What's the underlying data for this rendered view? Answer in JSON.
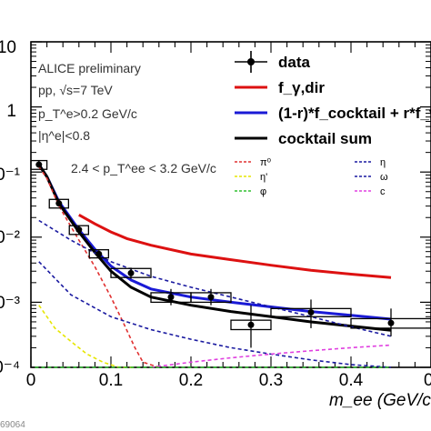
{
  "chart_data": {
    "type": "line",
    "xlabel": "m_ee (GeV/c",
    "ylabel": "",
    "xlim": [
      0,
      0.5
    ],
    "ylim": [
      0.0001,
      10
    ],
    "y_scale": "log",
    "x_ticks": [
      "0",
      "0.1",
      "0.2",
      "0.3",
      "0.4",
      "0"
    ],
    "y_ticks": [
      "10",
      "1",
      "0⁻¹",
      "0⁻²",
      "0⁻³",
      "0⁻⁴"
    ],
    "annotations": [
      "ALICE preliminary",
      "pp, √s=7 TeV",
      "p_T^e>0.2 GeV/c",
      "|η^e|<0.8",
      "2.4 < p_T^ee < 3.2 GeV/c"
    ],
    "watermark": "69064",
    "legend": [
      {
        "label": "data",
        "color": "#000000",
        "style": "marker"
      },
      {
        "label": "f_γ,dir",
        "color": "#dd1111",
        "style": "line"
      },
      {
        "label": "(1-r)*f_cocktail + r*f_γ,dir",
        "color": "#1a1ad6",
        "style": "line"
      },
      {
        "label": "cocktail sum",
        "color": "#000000",
        "style": "line"
      }
    ],
    "legend_small": [
      {
        "label": "π⁰",
        "color": "#e03030"
      },
      {
        "label": "η",
        "color": "#1a1aa0"
      },
      {
        "label": "η'",
        "color": "#e6e600"
      },
      {
        "label": "ω",
        "color": "#1a1aa0"
      },
      {
        "label": "φ",
        "color": "#30c030"
      },
      {
        "label": "c",
        "color": "#e040e0"
      }
    ],
    "series": [
      {
        "name": "data",
        "type": "points",
        "color": "#000000",
        "x": [
          0.01,
          0.035,
          0.06,
          0.085,
          0.125,
          0.175,
          0.225,
          0.275,
          0.35,
          0.45
        ],
        "y": [
          0.13,
          0.033,
          0.013,
          0.0055,
          0.0028,
          0.0012,
          0.0012,
          0.00045,
          0.0007,
          0.00048
        ],
        "y_err_low": [
          0.12,
          0.03,
          0.011,
          0.0048,
          0.0023,
          0.0009,
          0.0009,
          0.0002,
          0.0004,
          0.0003
        ],
        "y_err_high": [
          0.15,
          0.037,
          0.015,
          0.0063,
          0.0034,
          0.0016,
          0.0016,
          0.0009,
          0.0011,
          0.0008
        ],
        "sys_halfwidth": [
          0.01,
          0.012,
          0.012,
          0.012,
          0.025,
          0.025,
          0.025,
          0.025,
          0.05,
          0.05
        ],
        "sys_low": [
          0.11,
          0.028,
          0.011,
          0.0048,
          0.0024,
          0.001,
          0.001,
          0.00038,
          0.0006,
          0.0004
        ],
        "sys_high": [
          0.15,
          0.038,
          0.015,
          0.0064,
          0.0033,
          0.0014,
          0.0014,
          0.00053,
          0.0008,
          0.00056
        ]
      },
      {
        "name": "f_γ,dir",
        "color": "#dd1111",
        "dash": "solid",
        "x": [
          0.06,
          0.08,
          0.1,
          0.12,
          0.15,
          0.2,
          0.25,
          0.3,
          0.35,
          0.4,
          0.45
        ],
        "y": [
          0.022,
          0.016,
          0.012,
          0.0095,
          0.0075,
          0.0055,
          0.0045,
          0.0037,
          0.0031,
          0.0027,
          0.0024
        ]
      },
      {
        "name": "(1-r)*f_cocktail + r*f_γ,dir",
        "color": "#1a1ad6",
        "dash": "solid",
        "x": [
          0.01,
          0.02,
          0.035,
          0.06,
          0.08,
          0.1,
          0.125,
          0.15,
          0.2,
          0.25,
          0.3,
          0.35,
          0.4,
          0.45
        ],
        "y": [
          0.13,
          0.085,
          0.035,
          0.013,
          0.0065,
          0.0036,
          0.0022,
          0.0016,
          0.0012,
          0.001,
          0.00085,
          0.00072,
          0.00063,
          0.00055
        ]
      },
      {
        "name": "cocktail sum",
        "color": "#000000",
        "dash": "solid",
        "x": [
          0.01,
          0.02,
          0.035,
          0.06,
          0.08,
          0.1,
          0.125,
          0.15,
          0.2,
          0.25,
          0.3,
          0.35,
          0.4,
          0.45
        ],
        "y": [
          0.13,
          0.085,
          0.033,
          0.012,
          0.0058,
          0.003,
          0.0017,
          0.0012,
          0.0009,
          0.00072,
          0.0006,
          0.0005,
          0.00043,
          0.00037
        ]
      },
      {
        "name": "π⁰",
        "color": "#e03030",
        "dash": "4,3",
        "x": [
          0.01,
          0.02,
          0.035,
          0.06,
          0.08,
          0.1,
          0.115,
          0.13,
          0.14,
          0.16
        ],
        "y": [
          0.12,
          0.08,
          0.03,
          0.009,
          0.0035,
          0.0012,
          0.0005,
          0.0002,
          0.00012,
          0.0001
        ]
      },
      {
        "name": "η",
        "color": "#1a1aa0",
        "dash": "4,3",
        "x": [
          0.01,
          0.05,
          0.1,
          0.15,
          0.2,
          0.25,
          0.3,
          0.35,
          0.4,
          0.45
        ],
        "y": [
          0.018,
          0.009,
          0.0042,
          0.0025,
          0.0017,
          0.0012,
          0.00085,
          0.0006,
          0.00042,
          0.0003
        ]
      },
      {
        "name": "ω",
        "color": "#1a1aa0",
        "dash": "4,3",
        "x": [
          0.01,
          0.05,
          0.1,
          0.15,
          0.2,
          0.25,
          0.3,
          0.35,
          0.4,
          0.45
        ],
        "y": [
          0.0042,
          0.0013,
          0.0006,
          0.00038,
          0.00027,
          0.0002,
          0.00016,
          0.00013,
          0.00011,
          0.0001
        ]
      },
      {
        "name": "η'",
        "color": "#e6e600",
        "dash": "4,3",
        "x": [
          0.01,
          0.03,
          0.05,
          0.07,
          0.09,
          0.11,
          0.13
        ],
        "y": [
          0.0009,
          0.0004,
          0.00025,
          0.00016,
          0.00012,
          0.0001,
          0.0001
        ]
      },
      {
        "name": "c",
        "color": "#e040e0",
        "dash": "4,3",
        "x": [
          0.15,
          0.2,
          0.25,
          0.3,
          0.35,
          0.4,
          0.45
        ],
        "y": [
          0.0001,
          0.00012,
          0.00014,
          0.00016,
          0.00018,
          0.0002,
          0.00022
        ]
      },
      {
        "name": "φ",
        "color": "#30c030",
        "dash": "4,3",
        "x": [
          0.005,
          0.45
        ],
        "y": [
          0.0001,
          0.0001
        ]
      }
    ]
  }
}
